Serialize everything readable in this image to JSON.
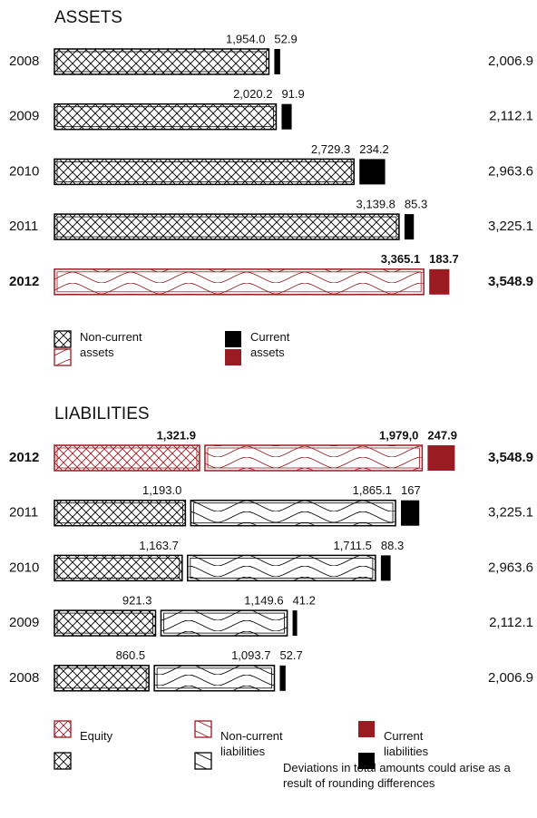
{
  "chart_data": [
    {
      "type": "bar",
      "title": "ASSETS",
      "categories": [
        "2008",
        "2009",
        "2010",
        "2011",
        "2012"
      ],
      "series": [
        {
          "name": "Non-current assets",
          "color": "#000000",
          "pattern": "cross",
          "highlight_pattern": "wave",
          "values": [
            1954.0,
            2020.2,
            2729.3,
            3139.8,
            3365.1
          ],
          "value_labels": [
            "1,954.0",
            "2,020.2",
            "2,729.3",
            "3,139.8",
            "3,365.1"
          ]
        },
        {
          "name": "Current assets",
          "color": "#000000",
          "pattern": "solid",
          "highlight_pattern": "solid",
          "values": [
            52.9,
            91.9,
            234.2,
            85.3,
            183.7
          ]
        }
      ],
      "totals": [
        2006.9,
        2112.1,
        2963.6,
        3225.1,
        3548.9
      ],
      "total_labels": [
        "2,006.9",
        "2,112.1",
        "2,963.6",
        "3,225.1",
        "3,548.9"
      ],
      "highlight_category": "2012",
      "highlight_color": "#9b1b22"
    },
    {
      "type": "bar",
      "title": "LIABILITIES",
      "categories": [
        "2012",
        "2011",
        "2010",
        "2009",
        "2008"
      ],
      "series": [
        {
          "name": "Equity",
          "color": "#000000",
          "pattern": "cross",
          "highlight_pattern": "cross",
          "values": [
            1321.9,
            1193.0,
            1163.7,
            921.3,
            860.5
          ],
          "value_labels": [
            "1,321.9",
            "1,193.0",
            "1,163.7",
            "921.3",
            "860.5"
          ]
        },
        {
          "name": "Non-current liabilities",
          "color": "#000000",
          "pattern": "wave",
          "highlight_pattern": "wave",
          "values": [
            1979.0,
            1865.1,
            1711.5,
            1149.6,
            1093.7
          ],
          "value_labels": [
            "1,979,0",
            "1,865.1",
            "1,711.5",
            "1,149.6",
            "1,093.7"
          ]
        },
        {
          "name": "Current liabilities",
          "color": "#000000",
          "pattern": "solid",
          "highlight_pattern": "solid",
          "values": [
            247.9,
            167.0,
            88.3,
            41.2,
            52.7
          ]
        }
      ],
      "totals": [
        3548.9,
        3225.1,
        2963.6,
        2112.1,
        2006.9
      ],
      "total_labels": [
        "3,548.9",
        "3,225.1",
        "2,963.6",
        "2,112.1",
        "2,006.9"
      ],
      "highlight_category": "2012",
      "highlight_color": "#9b1b22"
    }
  ],
  "footnote": "Deviations in total amounts could arise as a result of rounding differences"
}
